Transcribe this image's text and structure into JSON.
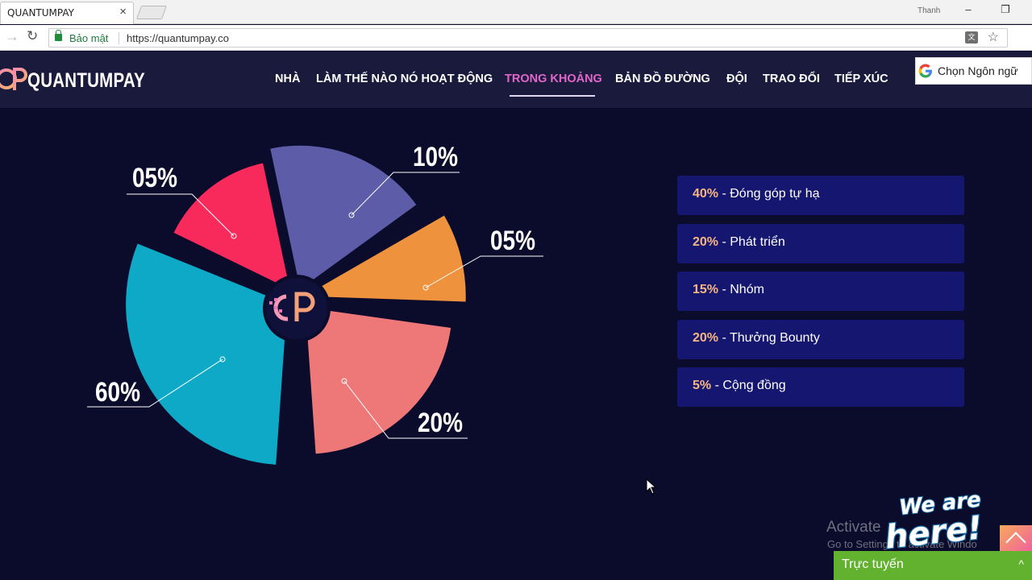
{
  "browser": {
    "tab_title": "QUANTUMPAY",
    "user": "Thanh",
    "secure_label": "Bảo mật",
    "url": "https://quantumpay.co"
  },
  "header": {
    "logo_text": "QUANTUMPAY",
    "nav": [
      {
        "label": "NHÀ"
      },
      {
        "label": "LÀM THẾ NÀO NÓ HOẠT ĐỘNG"
      },
      {
        "label": "TRONG KHOẢNG",
        "active": true
      },
      {
        "label": "BẢN ĐỒ ĐƯỜNG"
      },
      {
        "label": "ĐỘI"
      },
      {
        "label": "TRAO ĐỔI"
      },
      {
        "label": "TIẾP XÚC"
      }
    ],
    "language_selector": "Chọn Ngôn ngữ"
  },
  "chart_data": {
    "type": "pie",
    "slices": [
      {
        "label": "10%",
        "value": 10,
        "color": "#5c5ca8"
      },
      {
        "label": "05%",
        "value": 5,
        "color": "#ef923d"
      },
      {
        "label": "20%",
        "value": 20,
        "color": "#ee7878"
      },
      {
        "label": "60%",
        "value": 60,
        "color": "#0da9c7"
      },
      {
        "label": "05%",
        "value": 5,
        "color": "#f72a5b"
      }
    ],
    "center_logo": "QP"
  },
  "allocation": [
    {
      "pct": "40%",
      "name": " - Đóng góp tự hạ"
    },
    {
      "pct": "20%",
      "name": " - Phát triển"
    },
    {
      "pct": "15%",
      "name": " - Nhóm"
    },
    {
      "pct": "20%",
      "name": " - Thưởng Bounty"
    },
    {
      "pct": "5%",
      "name": " - Cộng đồng"
    }
  ],
  "overlay": {
    "activate_title": "Activate",
    "activate_sub": "Go to Settings to activate Windo",
    "we_are_here": "We are here!",
    "chat_label": "Trực tuyến"
  },
  "colors": {
    "background": "#0b0b2b",
    "header": "#1a1b3c",
    "accent_pink": "#e066c9",
    "card": "#151670",
    "pct_orange": "#f7b582",
    "chat_green": "#63b22f"
  }
}
